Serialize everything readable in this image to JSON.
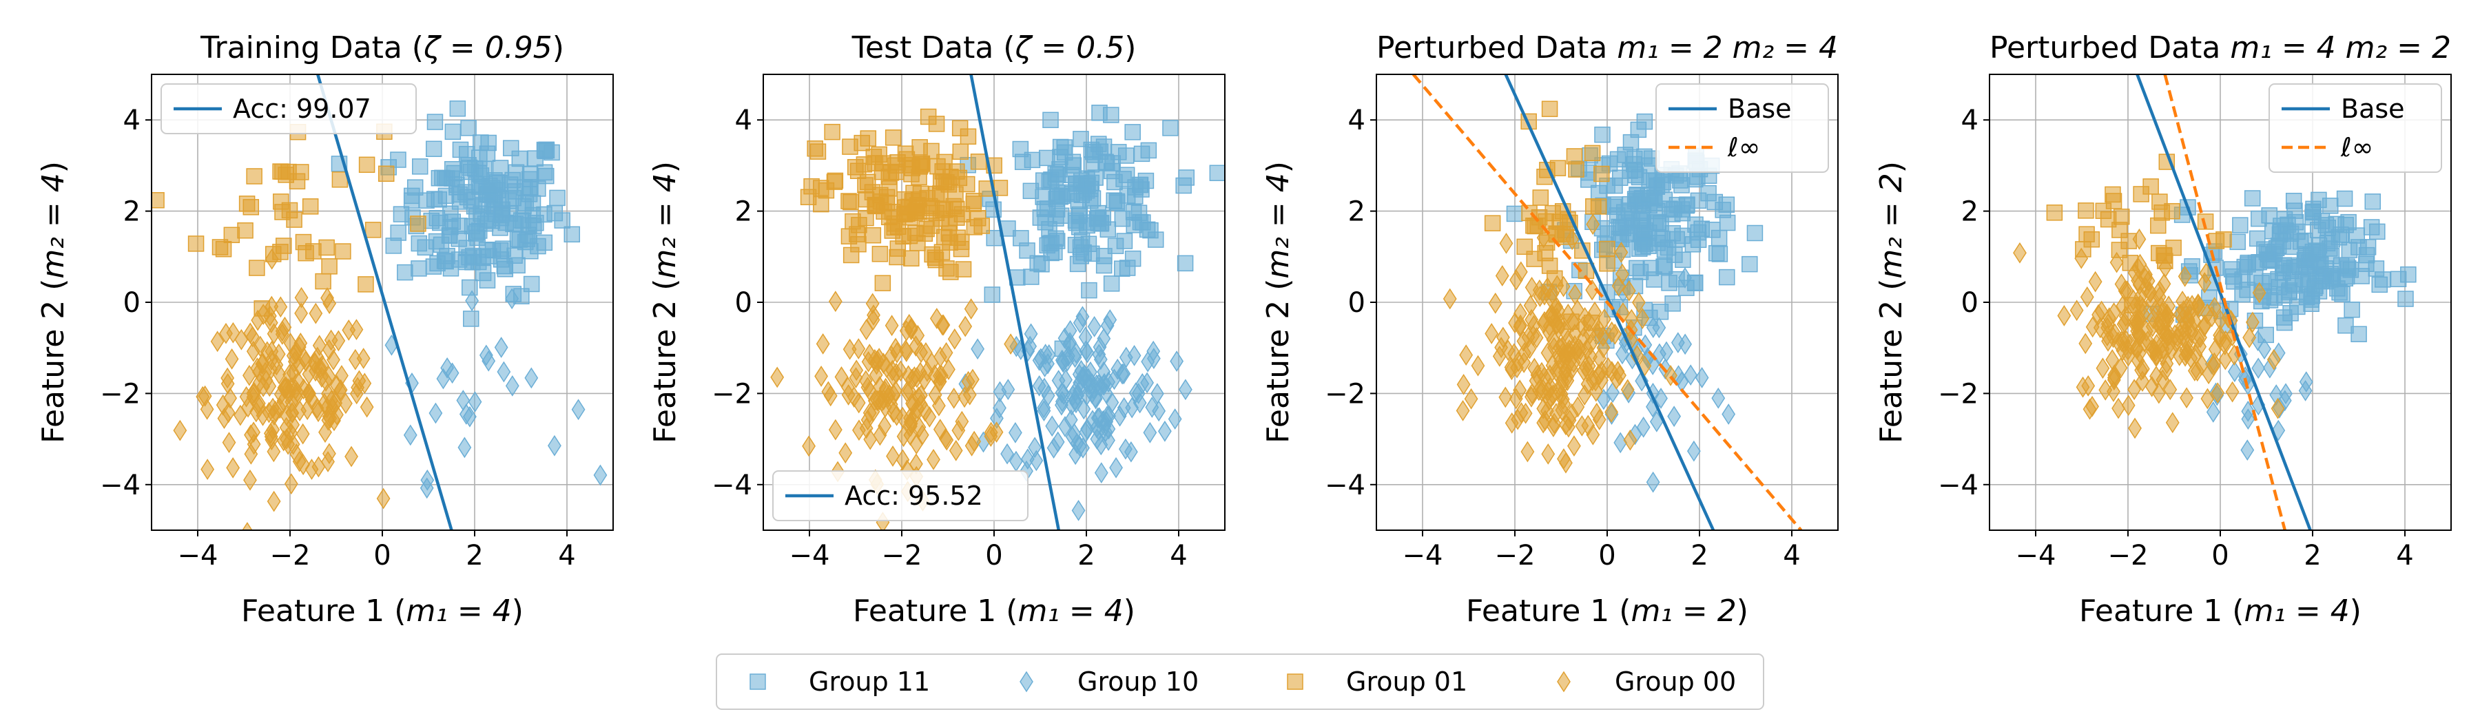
{
  "colors": {
    "group11": "#6baed6",
    "group10": "#6baed6",
    "group01": "#e0a030",
    "group00": "#e0a030",
    "base_line": "#1f77b4",
    "linf_line": "#ff7f0e"
  },
  "legend": {
    "items": [
      {
        "label": "Group 11",
        "marker": "square",
        "color": "#6baed6"
      },
      {
        "label": "Group 10",
        "marker": "diamond",
        "color": "#6baed6"
      },
      {
        "label": "Group 01",
        "marker": "square",
        "color": "#e0a030"
      },
      {
        "label": "Group 00",
        "marker": "diamond",
        "color": "#e0a030"
      }
    ]
  },
  "chart_data": [
    {
      "type": "scatter",
      "title_text": "Training Data (",
      "title_math": "ζ = 0.95",
      "title_suffix": ")",
      "xlabel_text": "Feature 1 (",
      "xlabel_math": "m₁ = 4",
      "xlabel_suffix": ")",
      "ylabel_text": "Feature 2 (",
      "ylabel_math": "m₂ = 4",
      "ylabel_suffix": ")",
      "xlim": [
        -5,
        5
      ],
      "ylim": [
        -5,
        5
      ],
      "xticks": [
        -4,
        -2,
        0,
        2,
        4
      ],
      "yticks": [
        -4,
        -2,
        0,
        2,
        4
      ],
      "xtick_labels": [
        "−4",
        "−2",
        "0",
        "2",
        "4"
      ],
      "ytick_labels": [
        "−4",
        "−2",
        "0",
        "2",
        "4"
      ],
      "grid": true,
      "clusters": [
        {
          "group": "Group 11",
          "marker": "square",
          "color": "#6baed6",
          "cx": 2.2,
          "cy": 2.0,
          "sx": 0.9,
          "sy": 0.9,
          "n": 180
        },
        {
          "group": "Group 10",
          "marker": "diamond",
          "color": "#6baed6",
          "cx": 2.0,
          "cy": -2.0,
          "sx": 1.0,
          "sy": 0.9,
          "n": 25
        },
        {
          "group": "Group 01",
          "marker": "square",
          "color": "#e0a030",
          "cx": -2.0,
          "cy": 2.0,
          "sx": 1.0,
          "sy": 1.0,
          "n": 40
        },
        {
          "group": "Group 00",
          "marker": "diamond",
          "color": "#e0a030",
          "cx": -2.0,
          "cy": -2.0,
          "sx": 0.9,
          "sy": 0.9,
          "n": 180
        }
      ],
      "lines": [
        {
          "name": "Acc: 99.07",
          "color": "#1f77b4",
          "dash": "solid",
          "x1": -1.4,
          "y1": 5.0,
          "x2": 1.5,
          "y2": -5.0
        }
      ],
      "legend_loc": "top-left"
    },
    {
      "type": "scatter",
      "title_text": "Test Data (",
      "title_math": "ζ = 0.5",
      "title_suffix": ")",
      "xlabel_text": "Feature 1 (",
      "xlabel_math": "m₁ = 4",
      "xlabel_suffix": ")",
      "ylabel_text": "Feature 2 (",
      "ylabel_math": "m₂ = 4",
      "ylabel_suffix": ")",
      "xlim": [
        -5,
        5
      ],
      "ylim": [
        -5,
        5
      ],
      "xticks": [
        -4,
        -2,
        0,
        2,
        4
      ],
      "yticks": [
        -4,
        -2,
        0,
        2,
        4
      ],
      "xtick_labels": [
        "−4",
        "−2",
        "0",
        "2",
        "4"
      ],
      "ytick_labels": [
        "−4",
        "−2",
        "0",
        "2",
        "4"
      ],
      "grid": true,
      "clusters": [
        {
          "group": "Group 11",
          "marker": "square",
          "color": "#6baed6",
          "cx": 2.0,
          "cy": 2.2,
          "sx": 0.9,
          "sy": 0.8,
          "n": 150
        },
        {
          "group": "Group 10",
          "marker": "diamond",
          "color": "#6baed6",
          "cx": 2.0,
          "cy": -2.0,
          "sx": 0.9,
          "sy": 0.9,
          "n": 150
        },
        {
          "group": "Group 01",
          "marker": "square",
          "color": "#e0a030",
          "cx": -2.0,
          "cy": 2.2,
          "sx": 0.9,
          "sy": 0.8,
          "n": 150
        },
        {
          "group": "Group 00",
          "marker": "diamond",
          "color": "#e0a030",
          "cx": -2.0,
          "cy": -2.0,
          "sx": 0.9,
          "sy": 0.9,
          "n": 150
        }
      ],
      "lines": [
        {
          "name": "Acc: 95.52",
          "color": "#1f77b4",
          "dash": "solid",
          "x1": -0.5,
          "y1": 5.0,
          "x2": 1.4,
          "y2": -5.0
        }
      ],
      "legend_loc": "bottom-left"
    },
    {
      "type": "scatter",
      "title_text": "Perturbed Data ",
      "title_math": "m₁ = 2  m₂ = 4",
      "title_suffix": "",
      "xlabel_text": "Feature 1 (",
      "xlabel_math": "m₁ = 2",
      "xlabel_suffix": ")",
      "ylabel_text": "Feature 2 (",
      "ylabel_math": "m₂ = 4",
      "ylabel_suffix": ")",
      "xlim": [
        -5,
        5
      ],
      "ylim": [
        -5,
        5
      ],
      "xticks": [
        -4,
        -2,
        0,
        2,
        4
      ],
      "yticks": [
        -4,
        -2,
        0,
        2,
        4
      ],
      "xtick_labels": [
        "−4",
        "−2",
        "0",
        "2",
        "4"
      ],
      "ytick_labels": [
        "−4",
        "−2",
        "0",
        "2",
        "4"
      ],
      "grid": true,
      "clusters": [
        {
          "group": "Group 11",
          "marker": "square",
          "color": "#6baed6",
          "cx": 1.0,
          "cy": 1.8,
          "sx": 0.8,
          "sy": 0.9,
          "n": 170
        },
        {
          "group": "Group 10",
          "marker": "diamond",
          "color": "#6baed6",
          "cx": 1.0,
          "cy": -1.8,
          "sx": 0.6,
          "sy": 0.9,
          "n": 40
        },
        {
          "group": "Group 01",
          "marker": "square",
          "color": "#e0a030",
          "cx": -1.0,
          "cy": 1.8,
          "sx": 0.6,
          "sy": 0.9,
          "n": 40
        },
        {
          "group": "Group 00",
          "marker": "diamond",
          "color": "#e0a030",
          "cx": -1.0,
          "cy": -1.2,
          "sx": 0.8,
          "sy": 1.0,
          "n": 200
        }
      ],
      "lines": [
        {
          "name": "Base",
          "color": "#1f77b4",
          "dash": "solid",
          "x1": -2.2,
          "y1": 5.0,
          "x2": 2.3,
          "y2": -5.0
        },
        {
          "name": "ℓ∞",
          "color": "#ff7f0e",
          "dash": "dashed",
          "x1": -4.2,
          "y1": 5.0,
          "x2": 4.2,
          "y2": -5.0
        }
      ],
      "legend_loc": "top-right"
    },
    {
      "type": "scatter",
      "title_text": "Perturbed Data ",
      "title_math": "m₁ = 4  m₂ = 2",
      "title_suffix": "",
      "xlabel_text": "Feature 1 (",
      "xlabel_math": "m₁ = 4",
      "xlabel_suffix": ")",
      "ylabel_text": "Feature 2 (",
      "ylabel_math": "m₂ = 2",
      "ylabel_suffix": ")",
      "xlim": [
        -5,
        5
      ],
      "ylim": [
        -5,
        5
      ],
      "xticks": [
        -4,
        -2,
        0,
        2,
        4
      ],
      "yticks": [
        -4,
        -2,
        0,
        2,
        4
      ],
      "xtick_labels": [
        "−4",
        "−2",
        "0",
        "2",
        "4"
      ],
      "ytick_labels": [
        "−4",
        "−2",
        "0",
        "2",
        "4"
      ],
      "grid": true,
      "clusters": [
        {
          "group": "Group 11",
          "marker": "square",
          "color": "#6baed6",
          "cx": 1.5,
          "cy": 0.8,
          "sx": 0.9,
          "sy": 0.7,
          "n": 170
        },
        {
          "group": "Group 10",
          "marker": "diamond",
          "color": "#6baed6",
          "cx": 0.8,
          "cy": -1.8,
          "sx": 0.6,
          "sy": 0.6,
          "n": 25
        },
        {
          "group": "Group 01",
          "marker": "square",
          "color": "#e0a030",
          "cx": -1.5,
          "cy": 1.6,
          "sx": 0.8,
          "sy": 0.7,
          "n": 30
        },
        {
          "group": "Group 00",
          "marker": "diamond",
          "color": "#e0a030",
          "cx": -1.3,
          "cy": -0.6,
          "sx": 0.9,
          "sy": 0.8,
          "n": 200
        }
      ],
      "lines": [
        {
          "name": "Base",
          "color": "#1f77b4",
          "dash": "solid",
          "x1": -1.8,
          "y1": 5.0,
          "x2": 1.95,
          "y2": -5.0
        },
        {
          "name": "ℓ∞",
          "color": "#ff7f0e",
          "dash": "dashed",
          "x1": -1.2,
          "y1": 5.0,
          "x2": 1.4,
          "y2": -5.0
        }
      ],
      "legend_loc": "top-right"
    }
  ]
}
